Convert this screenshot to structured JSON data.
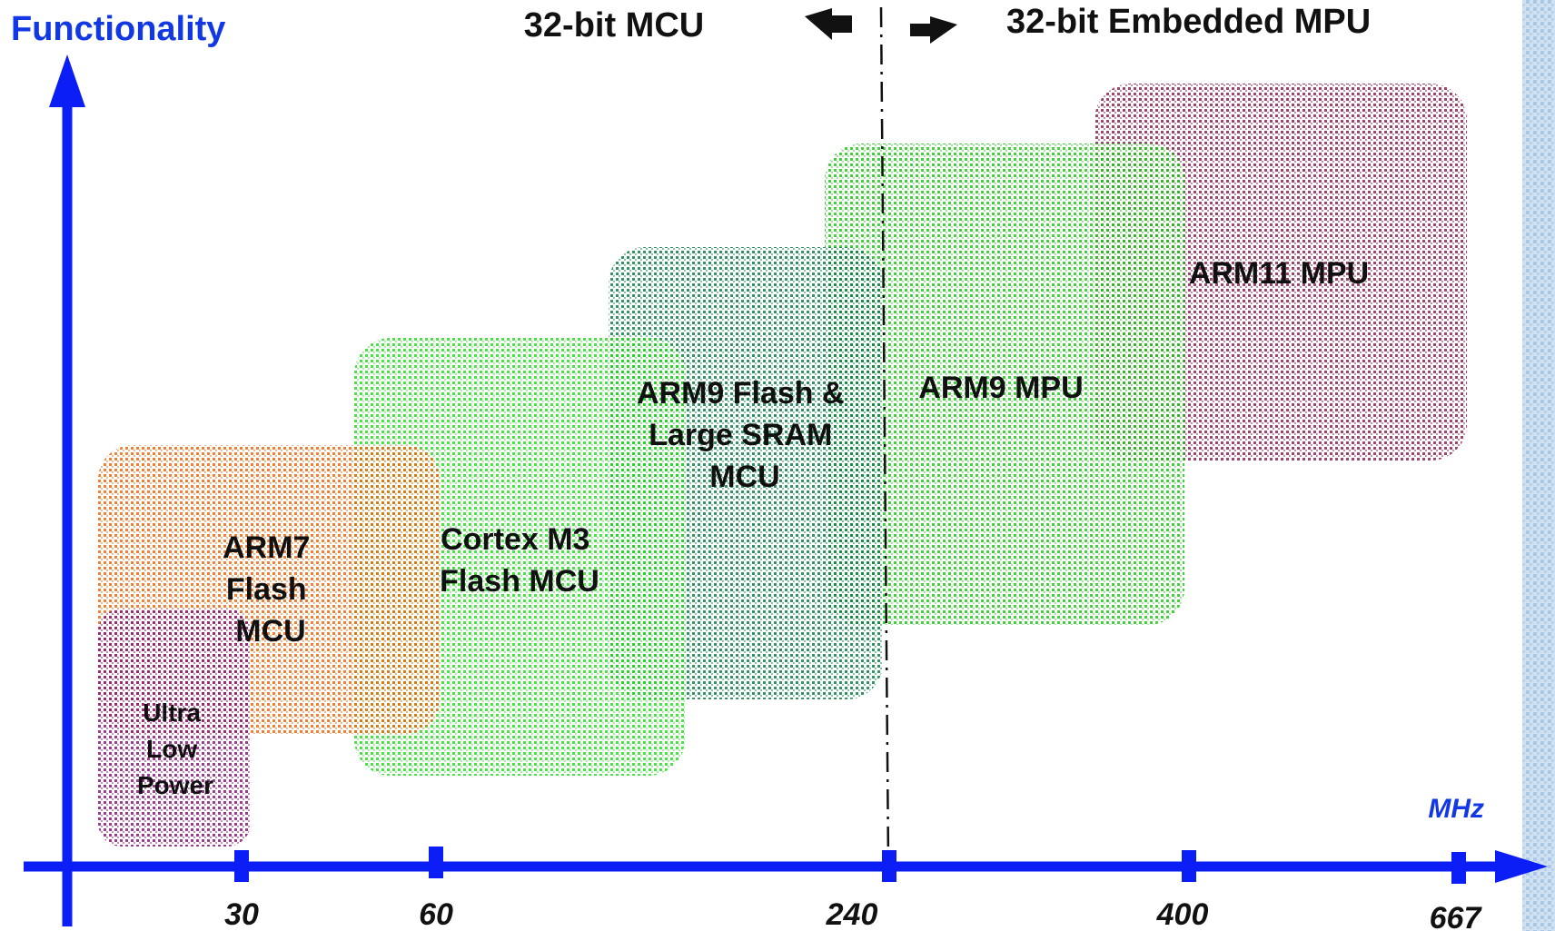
{
  "y_axis": {
    "label": "Functionality"
  },
  "x_axis": {
    "unit": "MHz",
    "ticks": [
      "30",
      "60",
      "240",
      "400",
      "667"
    ]
  },
  "divider": {
    "left_label": "32-bit MCU",
    "right_label": "32-bit Embedded MPU"
  },
  "regions": [
    {
      "key": "arm11",
      "lines": [
        "ARM11 MPU"
      ],
      "color": "#8e2454"
    },
    {
      "key": "arm9mpu",
      "lines": [
        "ARM9 MPU"
      ],
      "color": "#22c91c"
    },
    {
      "key": "arm9flash",
      "lines": [
        "ARM9 Flash &",
        "Large SRAM",
        "MCU"
      ],
      "color": "#12804a"
    },
    {
      "key": "cortexm3",
      "lines": [
        "Cortex M3",
        "Flash MCU"
      ],
      "color": "#25e01f"
    },
    {
      "key": "arm7",
      "lines": [
        "ARM7",
        "Flash",
        "MCU"
      ],
      "color": "#ef6a10"
    },
    {
      "key": "ulp",
      "lines": [
        "Ultra",
        "Low",
        "Power"
      ],
      "color": "#8a1c7c"
    }
  ],
  "colors": {
    "axis": "#0a1ef5",
    "label_blue": "#1238e6",
    "side_band": "#a9c7e6"
  }
}
